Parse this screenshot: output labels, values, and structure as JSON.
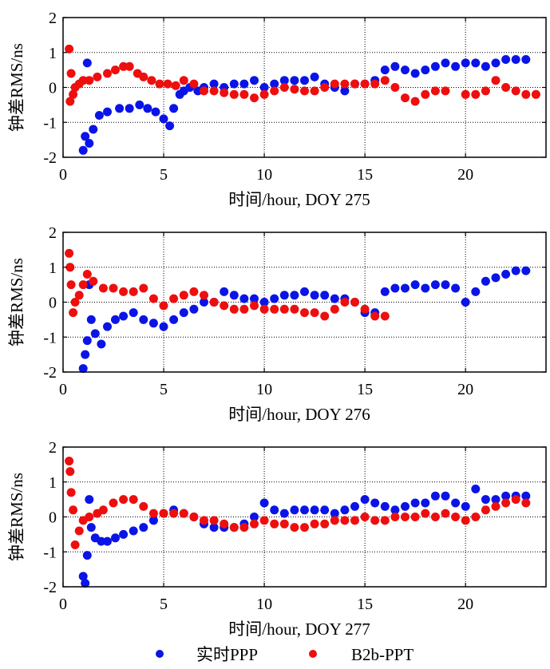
{
  "colors": {
    "realtime": "#0a14e6",
    "b2b": "#ee0e0e",
    "grid": "#000000"
  },
  "legend": [
    {
      "label": "实时PPP",
      "color": "#0a14e6"
    },
    {
      "label": "B2b-PPT",
      "color": "#ee0e0e"
    }
  ],
  "chart_data": [
    {
      "type": "scatter",
      "xlabel": "时间/hour, DOY 275",
      "ylabel": "钟差RMS/ns",
      "xlim": [
        0,
        24
      ],
      "ylim": [
        -2,
        2
      ],
      "xticks": [
        "0",
        "5",
        "10",
        "15",
        "20"
      ],
      "xtick_values": [
        0,
        5,
        10,
        15,
        20
      ],
      "yticks": [
        "-2",
        "-1",
        "0",
        "1",
        "2"
      ],
      "ytick_values": [
        -2,
        -1,
        0,
        1,
        2
      ],
      "grid": true,
      "series": [
        {
          "name": "实时PPP",
          "color": "#0a14e6",
          "x": [
            1.0,
            1.1,
            1.2,
            1.3,
            1.5,
            1.8,
            2.2,
            2.8,
            3.3,
            3.8,
            4.2,
            4.6,
            5.0,
            5.3,
            5.5,
            5.8,
            6.0,
            6.3,
            6.7,
            7.0,
            7.5,
            8.0,
            8.5,
            9.0,
            9.5,
            10.0,
            10.5,
            11.0,
            11.5,
            12.0,
            12.5,
            13.0,
            13.5,
            14.0,
            14.5,
            15.0,
            15.5,
            16.0,
            16.5,
            17.0,
            17.5,
            18.0,
            18.5,
            19.0,
            19.5,
            20.0,
            20.5,
            21.0,
            21.5,
            22.0,
            22.5,
            23.0
          ],
          "y": [
            -1.8,
            -1.4,
            0.7,
            -1.6,
            -1.2,
            -0.8,
            -0.7,
            -0.6,
            -0.6,
            -0.5,
            -0.6,
            -0.7,
            -0.9,
            -1.1,
            -0.6,
            -0.2,
            -0.1,
            0.0,
            -0.1,
            0.0,
            0.1,
            0.0,
            0.1,
            0.1,
            0.2,
            0.0,
            0.1,
            0.2,
            0.2,
            0.2,
            0.3,
            0.1,
            0.0,
            -0.1,
            0.1,
            0.1,
            0.2,
            0.5,
            0.6,
            0.5,
            0.4,
            0.5,
            0.6,
            0.7,
            0.6,
            0.7,
            0.7,
            0.6,
            0.7,
            0.8,
            0.8,
            0.8
          ]
        },
        {
          "name": "B2b-PPT",
          "color": "#ee0e0e",
          "x": [
            0.3,
            0.35,
            0.4,
            0.5,
            0.6,
            0.8,
            1.0,
            1.3,
            1.7,
            2.2,
            2.6,
            3.0,
            3.3,
            3.7,
            4.0,
            4.4,
            4.8,
            5.2,
            5.6,
            6.0,
            6.5,
            7.0,
            7.5,
            8.0,
            8.5,
            9.0,
            9.5,
            10.0,
            10.5,
            11.0,
            11.5,
            12.0,
            12.5,
            13.0,
            13.5,
            14.0,
            14.5,
            15.0,
            15.5,
            16.0,
            16.5,
            17.0,
            17.5,
            18.0,
            18.5,
            19.0,
            20.0,
            20.5,
            21.0,
            21.5,
            22.0,
            22.5,
            23.0,
            23.5
          ],
          "y": [
            1.1,
            -0.4,
            0.4,
            -0.2,
            0.0,
            0.1,
            0.2,
            0.2,
            0.3,
            0.4,
            0.5,
            0.6,
            0.6,
            0.4,
            0.3,
            0.2,
            0.1,
            0.1,
            0.05,
            0.2,
            0.1,
            -0.1,
            -0.1,
            -0.15,
            -0.2,
            -0.2,
            -0.3,
            -0.2,
            -0.1,
            0.0,
            -0.05,
            -0.1,
            -0.1,
            0.0,
            0.1,
            0.1,
            0.1,
            0.1,
            0.1,
            0.2,
            0.0,
            -0.3,
            -0.4,
            -0.2,
            -0.1,
            -0.1,
            -0.2,
            -0.2,
            -0.1,
            0.2,
            0.0,
            -0.1,
            -0.2,
            -0.2
          ]
        }
      ]
    },
    {
      "type": "scatter",
      "xlabel": "时间/hour, DOY 276",
      "ylabel": "钟差RMS/ns",
      "xlim": [
        0,
        24
      ],
      "ylim": [
        -2,
        2
      ],
      "xticks": [
        "0",
        "5",
        "10",
        "15",
        "20"
      ],
      "xtick_values": [
        0,
        5,
        10,
        15,
        20
      ],
      "yticks": [
        "-2",
        "-1",
        "0",
        "1",
        "2"
      ],
      "ytick_values": [
        -2,
        -1,
        0,
        1,
        2
      ],
      "grid": true,
      "series": [
        {
          "name": "实时PPP",
          "color": "#0a14e6",
          "x": [
            1.0,
            1.1,
            1.2,
            1.3,
            1.4,
            1.6,
            1.9,
            2.2,
            2.6,
            3.0,
            3.5,
            4.0,
            4.5,
            5.0,
            5.5,
            6.0,
            6.5,
            7.0,
            7.5,
            8.0,
            8.5,
            9.0,
            9.5,
            10.0,
            10.5,
            11.0,
            11.5,
            12.0,
            12.5,
            13.0,
            13.5,
            14.0,
            14.5,
            15.0,
            15.5,
            16.0,
            16.5,
            17.0,
            17.5,
            18.0,
            18.5,
            19.0,
            19.5,
            20.0,
            20.5,
            21.0,
            21.5,
            22.0,
            22.5,
            23.0
          ],
          "y": [
            -1.9,
            -1.5,
            -1.1,
            0.5,
            -0.5,
            -0.9,
            -1.2,
            -0.7,
            -0.5,
            -0.4,
            -0.3,
            -0.5,
            -0.6,
            -0.7,
            -0.5,
            -0.3,
            -0.2,
            0.0,
            0.0,
            0.3,
            0.2,
            0.1,
            0.1,
            0.0,
            0.1,
            0.2,
            0.2,
            0.3,
            0.2,
            0.2,
            0.1,
            0.1,
            0.0,
            -0.3,
            -0.3,
            0.3,
            0.4,
            0.4,
            0.5,
            0.4,
            0.5,
            0.5,
            0.4,
            0.0,
            0.3,
            0.6,
            0.7,
            0.8,
            0.9,
            0.9
          ]
        },
        {
          "name": "B2b-PPT",
          "color": "#ee0e0e",
          "x": [
            0.3,
            0.35,
            0.4,
            0.5,
            0.6,
            0.8,
            1.0,
            1.2,
            1.5,
            2.0,
            2.5,
            3.0,
            3.5,
            4.0,
            4.5,
            5.0,
            5.5,
            6.0,
            6.5,
            7.0,
            7.5,
            8.0,
            8.5,
            9.0,
            9.5,
            10.0,
            10.5,
            11.0,
            11.5,
            12.0,
            12.5,
            13.0,
            13.5,
            14.0,
            14.5,
            15.0,
            15.5,
            16.0
          ],
          "y": [
            1.4,
            1.0,
            0.5,
            -0.3,
            0.0,
            0.2,
            0.5,
            0.8,
            0.6,
            0.4,
            0.4,
            0.3,
            0.3,
            0.4,
            0.1,
            -0.1,
            0.1,
            0.2,
            0.3,
            0.2,
            0.0,
            -0.1,
            -0.2,
            -0.2,
            -0.1,
            -0.2,
            -0.2,
            -0.2,
            -0.2,
            -0.3,
            -0.3,
            -0.4,
            -0.2,
            0.0,
            0.0,
            -0.2,
            -0.4,
            -0.4
          ]
        }
      ]
    },
    {
      "type": "scatter",
      "xlabel": "时间/hour, DOY 277",
      "ylabel": "钟差RMS/ns",
      "xlim": [
        0,
        24
      ],
      "ylim": [
        -2,
        2
      ],
      "xticks": [
        "0",
        "5",
        "10",
        "15",
        "20"
      ],
      "xtick_values": [
        0,
        5,
        10,
        15,
        20
      ],
      "yticks": [
        "-2",
        "-1",
        "0",
        "1",
        "2"
      ],
      "ytick_values": [
        -2,
        -1,
        0,
        1,
        2
      ],
      "grid": true,
      "series": [
        {
          "name": "实时PPP",
          "color": "#0a14e6",
          "x": [
            1.0,
            1.1,
            1.2,
            1.3,
            1.4,
            1.6,
            1.9,
            2.2,
            2.6,
            3.0,
            3.5,
            4.0,
            4.5,
            5.0,
            5.5,
            6.0,
            6.5,
            7.0,
            7.5,
            8.0,
            8.5,
            9.0,
            9.5,
            10.0,
            10.5,
            11.0,
            11.5,
            12.0,
            12.5,
            13.0,
            13.5,
            14.0,
            14.5,
            15.0,
            15.5,
            16.0,
            16.5,
            17.0,
            17.5,
            18.0,
            18.5,
            19.0,
            19.5,
            20.0,
            20.5,
            21.0,
            21.5,
            22.0,
            22.5,
            23.0
          ],
          "y": [
            -1.7,
            -1.9,
            -1.1,
            0.5,
            -0.3,
            -0.6,
            -0.7,
            -0.7,
            -0.6,
            -0.5,
            -0.4,
            -0.3,
            -0.1,
            0.1,
            0.2,
            0.1,
            0.0,
            -0.2,
            -0.3,
            -0.3,
            -0.3,
            -0.2,
            0.0,
            0.4,
            0.2,
            0.1,
            0.2,
            0.2,
            0.2,
            0.2,
            0.1,
            0.2,
            0.3,
            0.5,
            0.4,
            0.3,
            0.2,
            0.3,
            0.4,
            0.4,
            0.6,
            0.6,
            0.4,
            0.3,
            0.8,
            0.5,
            0.5,
            0.6,
            0.6,
            0.6
          ]
        },
        {
          "name": "B2b-PPT",
          "color": "#ee0e0e",
          "x": [
            0.3,
            0.35,
            0.4,
            0.5,
            0.6,
            0.8,
            1.0,
            1.3,
            1.7,
            2.0,
            2.5,
            3.0,
            3.5,
            4.0,
            4.5,
            5.0,
            5.5,
            6.0,
            6.5,
            7.0,
            7.5,
            8.0,
            8.5,
            9.0,
            9.5,
            10.0,
            10.5,
            11.0,
            11.5,
            12.0,
            12.5,
            13.0,
            13.5,
            14.0,
            14.5,
            15.0,
            15.5,
            16.0,
            16.5,
            17.0,
            17.5,
            18.0,
            18.5,
            19.0,
            19.5,
            20.0,
            20.5,
            21.0,
            21.5,
            22.0,
            22.5,
            23.0
          ],
          "y": [
            1.6,
            1.3,
            0.7,
            0.2,
            -0.8,
            -0.4,
            -0.1,
            0.0,
            0.1,
            0.2,
            0.4,
            0.5,
            0.5,
            0.3,
            0.1,
            0.1,
            0.1,
            0.1,
            0.0,
            -0.1,
            -0.1,
            -0.2,
            -0.3,
            -0.3,
            -0.2,
            -0.1,
            -0.2,
            -0.2,
            -0.3,
            -0.3,
            -0.2,
            -0.2,
            -0.1,
            -0.1,
            -0.1,
            0.0,
            -0.1,
            -0.1,
            0.0,
            0.0,
            0.0,
            0.1,
            0.0,
            0.1,
            0.0,
            -0.1,
            0.0,
            0.2,
            0.3,
            0.4,
            0.5,
            0.4
          ]
        }
      ]
    }
  ]
}
